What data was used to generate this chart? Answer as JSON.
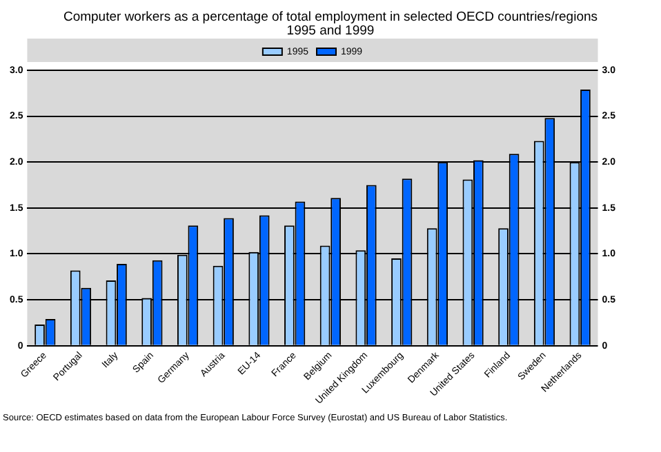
{
  "chart_data": {
    "type": "bar",
    "title": "Computer workers as a percentage of total employment in selected OECD countries/regions",
    "subtitle": "1995 and 1999",
    "categories": [
      "Greece",
      "Portugal",
      "Italy",
      "Spain",
      "Germany",
      "Austria",
      "EU-14",
      "France",
      "Belgium",
      "United Kingdom",
      "Luxembourg",
      "Denmark",
      "United States",
      "Finland",
      "Sweden",
      "Netherlands"
    ],
    "series": [
      {
        "name": "1995",
        "color": "#99ccff",
        "values": [
          0.23,
          0.82,
          0.71,
          0.52,
          0.99,
          0.87,
          1.02,
          1.31,
          1.09,
          1.04,
          0.95,
          1.28,
          1.81,
          1.28,
          2.23,
          2.0
        ]
      },
      {
        "name": "1999",
        "color": "#0066ff",
        "values": [
          0.29,
          0.63,
          0.89,
          0.93,
          1.31,
          1.39,
          1.42,
          1.57,
          1.61,
          1.75,
          1.82,
          2.0,
          2.02,
          2.09,
          2.48,
          2.79
        ]
      }
    ],
    "ylim": [
      0,
      3
    ],
    "yticks": [
      0,
      0.5,
      {
        "value": 1,
        "label": "1.0"
      },
      1.5,
      {
        "value": 2,
        "label": "2.0"
      },
      2.5,
      {
        "value": 3,
        "label": "3.0"
      }
    ],
    "y2lim": [
      0,
      3
    ],
    "y2ticks": [
      0,
      0.5,
      {
        "value": 1,
        "label": "1.0"
      },
      1.5,
      {
        "value": 2,
        "label": "2.0"
      },
      2.5,
      {
        "value": 3,
        "label": "3.0"
      }
    ],
    "grid": "y",
    "legend": "top",
    "annotations": [
      "Source:  OECD estimates based on data from the European Labour Force Survey (Eurostat) and US Bureau of Labor Statistics."
    ]
  }
}
